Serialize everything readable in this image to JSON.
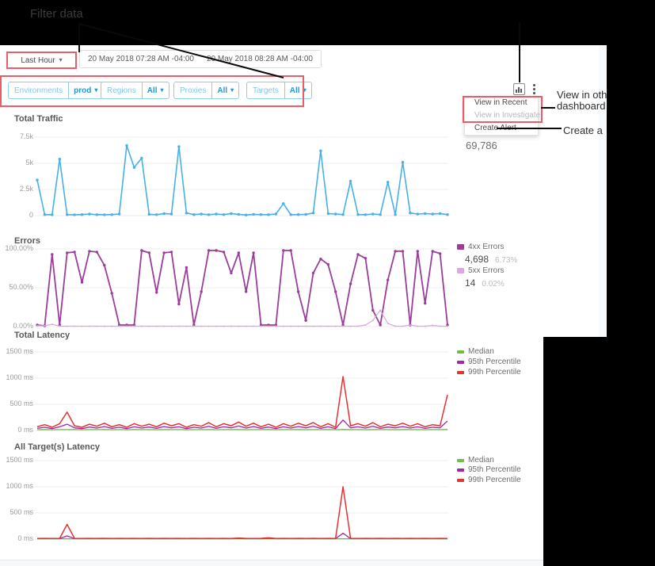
{
  "annotations": {
    "filter_data": "Filter data",
    "view_other_1": "View in oth",
    "view_other_2": "dashboard",
    "create_a": "Create a"
  },
  "icons": {
    "time_caret": "chevron-down",
    "chart_button": "bar-chart",
    "more_menu": "kebab-vertical"
  },
  "toolbar": {
    "time_range": "Last Hour",
    "date_start": "20 May 2018 07:28 AM -04:00",
    "date_end": "20 May 2018 08:28 AM -04:00"
  },
  "filters": [
    {
      "label": "Environments",
      "value": "prod"
    },
    {
      "label": "Regions",
      "value": "All"
    },
    {
      "label": "Proxies",
      "value": "All"
    },
    {
      "label": "Targets",
      "value": "All"
    }
  ],
  "filter_separator": "›",
  "menu": {
    "item_recent": "View in Recent",
    "item_investigate": "View in Investigate",
    "item_create_alert": "Create Alert"
  },
  "chart_data": [
    {
      "type": "line",
      "title": "Total Traffic",
      "total": "69,786",
      "yticks": [
        "7.5k",
        "5k",
        "2.5k",
        "0"
      ],
      "ylim": [
        0,
        7500
      ],
      "series": [
        {
          "name": "Traffic",
          "color": "#45b1e8",
          "values": [
            3400,
            100,
            80,
            5400,
            90,
            80,
            100,
            150,
            90,
            80,
            100,
            150,
            6700,
            4600,
            5500,
            120,
            90,
            200,
            150,
            6600,
            250,
            100,
            150,
            90,
            150,
            100,
            200,
            120,
            60,
            120,
            100,
            90,
            150,
            1150,
            90,
            100,
            110,
            250,
            6200,
            200,
            150,
            100,
            3300,
            100,
            90,
            150,
            100,
            3200,
            90,
            5100,
            250,
            150,
            200,
            150,
            200,
            100
          ]
        }
      ]
    },
    {
      "type": "line",
      "title": "Errors",
      "yticks": [
        "100.00%",
        "50.00%",
        "0.00%"
      ],
      "ylim": [
        0,
        100
      ],
      "series": [
        {
          "name": "4xx Errors",
          "total": "4,698",
          "pct": "6.73%",
          "color": "#9b3d9b",
          "values": [
            2,
            1,
            93,
            2,
            95,
            96,
            57,
            97,
            96,
            79,
            43,
            2,
            2,
            2,
            98,
            95,
            44,
            95,
            96,
            29,
            76,
            2,
            45,
            98,
            98,
            96,
            69,
            95,
            45,
            95,
            2,
            2,
            2,
            98,
            98,
            45,
            8,
            69,
            87,
            80,
            45,
            2,
            55,
            93,
            88,
            21,
            2,
            60,
            97,
            97,
            2,
            97,
            30,
            97,
            94,
            2
          ]
        },
        {
          "name": "5xx Errors",
          "total": "14",
          "pct": "0.02%",
          "color": "#d9aad9",
          "values": [
            1,
            1,
            3,
            0.5,
            0.5,
            0.5,
            0.5,
            0.5,
            0.5,
            0.5,
            0.5,
            0.5,
            0.5,
            0.5,
            0.5,
            0.5,
            0.5,
            0.5,
            0.5,
            0.5,
            0.5,
            0.5,
            0.5,
            0.5,
            0.5,
            0.5,
            0.5,
            0.5,
            0.5,
            0.5,
            0.5,
            0.5,
            0.5,
            0.5,
            0.5,
            0.5,
            0.5,
            0.5,
            0.5,
            0.5,
            0.5,
            0.5,
            0.5,
            0.5,
            2,
            8,
            21,
            4,
            0.5,
            0.5,
            2,
            0.5,
            0.5,
            1.5,
            0.5,
            0.5
          ]
        }
      ]
    },
    {
      "type": "line",
      "title": "Total Latency",
      "yticks": [
        "1500 ms",
        "1000 ms",
        "500 ms",
        "0 ms"
      ],
      "ylim": [
        0,
        1500
      ],
      "series": [
        {
          "name": "Median",
          "color": "#6ebf45",
          "values": [
            15,
            18,
            15,
            17,
            16,
            18,
            15,
            17,
            16,
            18,
            15,
            17,
            15,
            18,
            16,
            17,
            15,
            18,
            16,
            17,
            15,
            17,
            16,
            18,
            15,
            17,
            16,
            18,
            15,
            17,
            16,
            18,
            15,
            17,
            16,
            18,
            15,
            17,
            16,
            18,
            15,
            20,
            16,
            17,
            15,
            18,
            16,
            17,
            15,
            18,
            16,
            17,
            15,
            17,
            16,
            18
          ]
        },
        {
          "name": "95th Percentile",
          "color": "#a823a8",
          "values": [
            40,
            60,
            35,
            70,
            120,
            50,
            35,
            65,
            45,
            75,
            40,
            60,
            35,
            70,
            45,
            65,
            40,
            75,
            50,
            70,
            35,
            60,
            45,
            80,
            40,
            70,
            50,
            85,
            45,
            75,
            40,
            65,
            35,
            70,
            45,
            75,
            50,
            80,
            40,
            70,
            35,
            200,
            50,
            70,
            45,
            80,
            40,
            65,
            50,
            75,
            45,
            70,
            40,
            60,
            50,
            180
          ]
        },
        {
          "name": "99th Percentile",
          "color": "#e53131",
          "values": [
            70,
            110,
            60,
            130,
            350,
            90,
            60,
            120,
            80,
            140,
            70,
            110,
            60,
            130,
            80,
            120,
            70,
            140,
            90,
            130,
            60,
            110,
            80,
            150,
            70,
            130,
            90,
            160,
            80,
            140,
            70,
            120,
            60,
            130,
            80,
            140,
            90,
            150,
            70,
            130,
            60,
            1030,
            90,
            130,
            80,
            150,
            70,
            120,
            90,
            140,
            80,
            130,
            70,
            110,
            90,
            680
          ]
        }
      ]
    },
    {
      "type": "line",
      "title": "All Target(s) Latency",
      "yticks": [
        "1500 ms",
        "1000 ms",
        "500 ms",
        "0 ms"
      ],
      "ylim": [
        0,
        1500
      ],
      "series": [
        {
          "name": "Median",
          "color": "#6ebf45",
          "values": [
            5,
            5,
            5,
            5,
            5,
            5,
            5,
            5,
            5,
            5,
            5,
            5,
            5,
            5,
            5,
            5,
            5,
            5,
            5,
            5,
            5,
            5,
            5,
            5,
            5,
            5,
            5,
            5,
            5,
            5,
            5,
            5,
            5,
            5,
            5,
            5,
            5,
            5,
            5,
            5,
            5,
            5,
            5,
            5,
            5,
            5,
            5,
            5,
            5,
            5,
            5,
            5,
            5,
            5,
            5,
            5
          ]
        },
        {
          "name": "95th Percentile",
          "color": "#a823a8",
          "values": [
            8,
            8,
            8,
            8,
            60,
            8,
            8,
            8,
            8,
            8,
            8,
            8,
            8,
            8,
            8,
            8,
            8,
            8,
            8,
            8,
            8,
            8,
            8,
            8,
            8,
            8,
            8,
            12,
            8,
            8,
            8,
            14,
            8,
            8,
            8,
            8,
            8,
            8,
            8,
            8,
            8,
            110,
            8,
            8,
            8,
            8,
            8,
            8,
            8,
            8,
            8,
            8,
            8,
            8,
            8,
            8
          ]
        },
        {
          "name": "99th Percentile",
          "color": "#e53131",
          "values": [
            12,
            13,
            12,
            13,
            280,
            12,
            12,
            13,
            12,
            13,
            12,
            13,
            12,
            13,
            12,
            13,
            12,
            13,
            12,
            13,
            12,
            13,
            12,
            13,
            12,
            13,
            12,
            20,
            13,
            12,
            13,
            25,
            12,
            13,
            12,
            13,
            12,
            13,
            12,
            13,
            12,
            1000,
            13,
            12,
            13,
            12,
            13,
            12,
            13,
            12,
            13,
            12,
            13,
            12,
            13,
            12
          ]
        }
      ]
    }
  ]
}
